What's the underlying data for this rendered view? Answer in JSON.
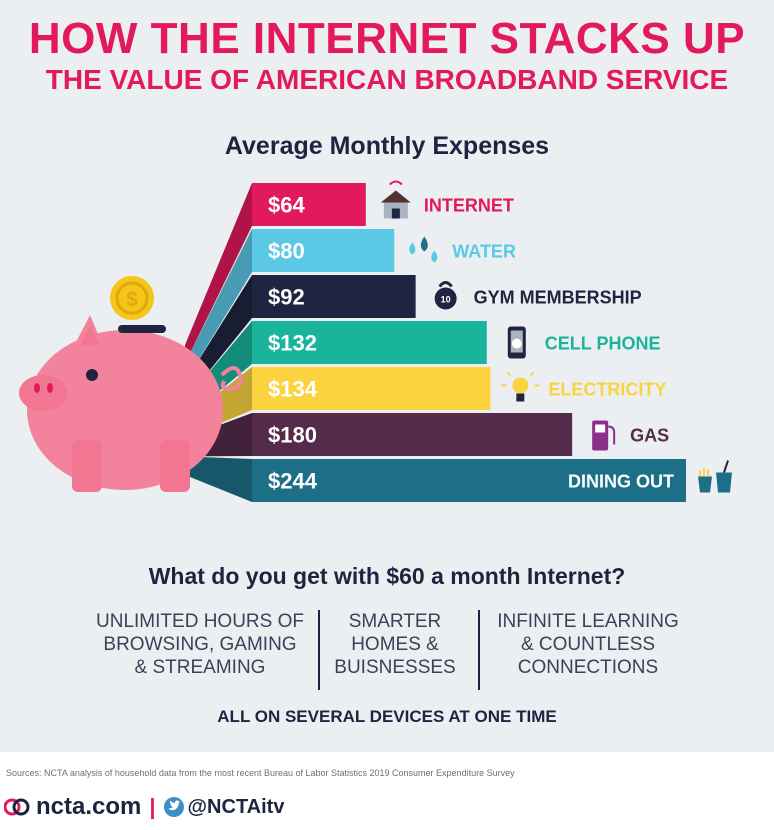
{
  "header": {
    "title": "HOW THE INTERNET STACKS UP",
    "subtitle": "THE VALUE OF AMERICAN BROADBAND SERVICE"
  },
  "chart_data": {
    "type": "bar",
    "title": "Average Monthly Expenses",
    "orientation": "horizontal",
    "categories": [
      "INTERNET",
      "WATER",
      "GYM MEMBERSHIP",
      "CELL PHONE",
      "ELECTRICITY",
      "GAS",
      "DINING OUT"
    ],
    "values": [
      64,
      80,
      92,
      132,
      134,
      180,
      244
    ],
    "value_labels": [
      "$64",
      "$80",
      "$92",
      "$132",
      "$134",
      "$180",
      "$244"
    ],
    "colors": [
      "#e2195b",
      "#5bc8e6",
      "#1f2540",
      "#1ab49c",
      "#fbd33f",
      "#542b4b",
      "#1d6f87"
    ],
    "label_colors": [
      "#e2195b",
      "#5bc8e6",
      "#1f2540",
      "#1ab49c",
      "#fbd33f",
      "#542b4b",
      "#ffffff"
    ],
    "icons": [
      "house-wifi-icon",
      "water-drops-icon",
      "kettlebell-icon",
      "cell-phone-icon",
      "lightbulb-icon",
      "gas-pump-icon",
      "fries-drink-icon"
    ]
  },
  "question": "What do you get with $60 a month Internet?",
  "benefits": [
    {
      "lines": [
        "UNLIMITED HOURS OF",
        "BROWSING, GAMING",
        "& STREAMING"
      ]
    },
    {
      "lines": [
        "SMARTER",
        "HOMES &",
        "BUISNESSES"
      ]
    },
    {
      "lines": [
        "INFINITE LEARNING",
        "& COUNTLESS",
        "CONNECTIONS"
      ]
    }
  ],
  "all_devices": "ALL ON SEVERAL DEVICES AT ONE TIME",
  "footer": {
    "sources": "Sources: NCTA analysis of household data from the most recent Bureau of Labor Statistics 2019 Consumer Expenditure Survey",
    "site": "ncta.com",
    "separator": "|",
    "handle": "@NCTAitv"
  },
  "colors": {
    "accent": "#e2195b",
    "navy": "#1e2440",
    "background": "#eceff1",
    "piggy": "#f3839d",
    "coin": "#f5c518"
  }
}
